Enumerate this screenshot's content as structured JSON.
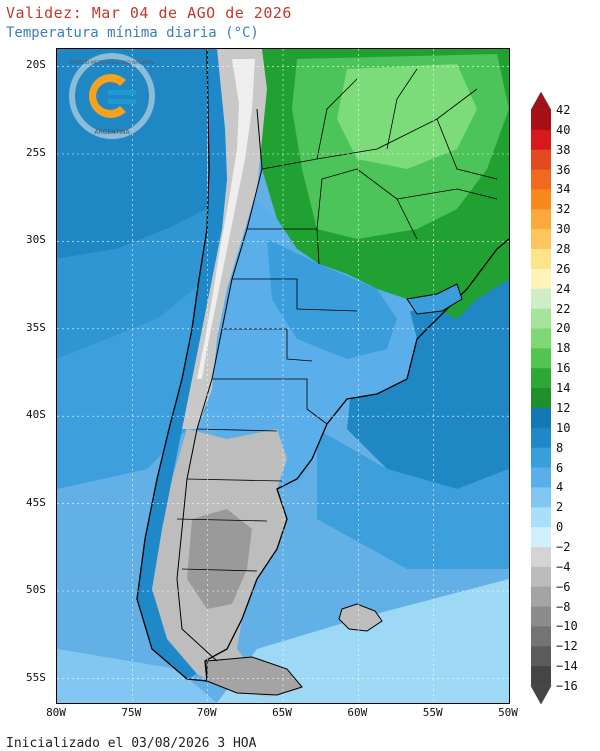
{
  "header": {
    "title": "Validez: Mar 04 de AGO de 2026",
    "subtitle": "Temperatura mínima diaria (°C)"
  },
  "footer": {
    "init_text": "Inicializado el 03/08/2026 3 HOA"
  },
  "logo": {
    "ring_text": "SERVICIO METEOROLÓGICO NACIONAL",
    "country_text": "ARGENTINA",
    "colors": {
      "orange": "#f5a21e",
      "blue": "#1c9ad6",
      "ring": "#e8e8e8"
    }
  },
  "map": {
    "lat_labels": [
      "20S",
      "25S",
      "30S",
      "35S",
      "40S",
      "45S",
      "50S",
      "55S"
    ],
    "lon_labels": [
      "80W",
      "75W",
      "70W",
      "65W",
      "60W",
      "55W",
      "50W"
    ],
    "lon_range": [
      -80,
      -50
    ],
    "lat_range": [
      -19,
      -56.4
    ],
    "colors": {
      "ocean_warm": "#1f88c4",
      "ocean_mid": "#3d9fdb",
      "ocean_cool": "#63b0e6",
      "ocean_cold": "#9dd8f5",
      "land_warm": "#20a132",
      "land_mild": "#4cc45a",
      "land_hot": "#7ddc7a",
      "andes_cold": "#a8a8a8",
      "patagonia_cold": "#bdbdbd",
      "border": "#000000"
    }
  },
  "legend": {
    "ticks": [
      "42",
      "40",
      "38",
      "36",
      "34",
      "32",
      "30",
      "28",
      "26",
      "24",
      "22",
      "20",
      "18",
      "16",
      "14",
      "12",
      "10",
      "8",
      "6",
      "4",
      "2",
      "0",
      "−2",
      "−4",
      "−6",
      "−8",
      "−10",
      "−12",
      "−14",
      "−16"
    ],
    "colors": [
      "#a50f15",
      "#d7191c",
      "#e34a1f",
      "#f0691e",
      "#f7891d",
      "#fba93a",
      "#fdc65c",
      "#fde38a",
      "#fef4b8",
      "#cfeec8",
      "#a8e39c",
      "#7ed874",
      "#52c44f",
      "#2ea834",
      "#1e8f2a",
      "#1478b5",
      "#1f88c8",
      "#3a9ddc",
      "#5aaeea",
      "#82c6f2",
      "#aadff8",
      "#d0f1fc",
      "#d4d4d4",
      "#bcbcbc",
      "#a4a4a4",
      "#8c8c8c",
      "#747474",
      "#5c5c5c",
      "#454545"
    ],
    "top_arrow_color": "#a50f15",
    "bottom_arrow_color": "#454545"
  }
}
